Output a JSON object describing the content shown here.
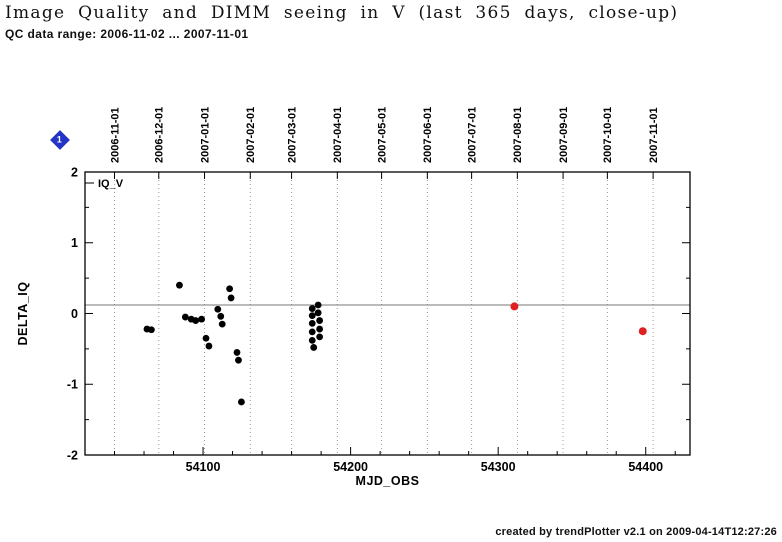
{
  "header": {
    "qc_range": "QC data range: 2006-11-02 ... 2007-11-01"
  },
  "marker_badge": {
    "label": "1",
    "color": "#2435c5"
  },
  "footer": {
    "credit": "created by trendPlotter v2.1 on 2009-04-14T12:27:26"
  },
  "chart_data": {
    "type": "scatter",
    "title": "Image Quality and DIMM seeing in V (last 365 days, close-up)",
    "xlabel": "MJD_OBS",
    "ylabel": "DELTA_IQ",
    "legend_label": "IQ_V",
    "xlim": [
      54020,
      54430
    ],
    "ylim": [
      -2,
      2
    ],
    "xticks": [
      54100,
      54200,
      54300,
      54400
    ],
    "yticks": [
      -2,
      -1,
      0,
      1,
      2
    ],
    "x_minor_step": 20,
    "y_minor_step": 0.5,
    "grid": "dotted-vertical-at-month-starts",
    "legend_position": "top-left-inside",
    "reference_line_y": 0.12,
    "top_axis_ticks": [
      {
        "label": "2006-11-01",
        "mjd": 54040
      },
      {
        "label": "2006-12-01",
        "mjd": 54070
      },
      {
        "label": "2007-01-01",
        "mjd": 54101
      },
      {
        "label": "2007-02-01",
        "mjd": 54132
      },
      {
        "label": "2007-03-01",
        "mjd": 54160
      },
      {
        "label": "2007-04-01",
        "mjd": 54191
      },
      {
        "label": "2007-05-01",
        "mjd": 54221
      },
      {
        "label": "2007-06-01",
        "mjd": 54252
      },
      {
        "label": "2007-07-01",
        "mjd": 54282
      },
      {
        "label": "2007-08-01",
        "mjd": 54313
      },
      {
        "label": "2007-09-01",
        "mjd": 54344
      },
      {
        "label": "2007-10-01",
        "mjd": 54374
      },
      {
        "label": "2007-11-01",
        "mjd": 54405
      }
    ],
    "series": [
      {
        "name": "iq-v-black",
        "color": "#000000",
        "marker_size": 3.4,
        "points": [
          [
            54062,
            -0.22
          ],
          [
            54065,
            -0.23
          ],
          [
            54084,
            0.4
          ],
          [
            54088,
            -0.05
          ],
          [
            54092,
            -0.08
          ],
          [
            54095,
            -0.1
          ],
          [
            54099,
            -0.08
          ],
          [
            54102,
            -0.35
          ],
          [
            54104,
            -0.46
          ],
          [
            54110,
            0.06
          ],
          [
            54112,
            -0.04
          ],
          [
            54113,
            -0.15
          ],
          [
            54118,
            0.35
          ],
          [
            54119,
            0.22
          ],
          [
            54123,
            -0.55
          ],
          [
            54124,
            -0.66
          ],
          [
            54126,
            -1.25
          ],
          [
            54174,
            0.07
          ],
          [
            54174,
            -0.03
          ],
          [
            54174,
            -0.14
          ],
          [
            54174,
            -0.26
          ],
          [
            54174,
            -0.38
          ],
          [
            54175,
            -0.48
          ],
          [
            54178,
            0.12
          ],
          [
            54178,
            0.01
          ],
          [
            54179,
            -0.1
          ],
          [
            54179,
            -0.22
          ],
          [
            54179,
            -0.33
          ]
        ]
      },
      {
        "name": "iq-v-red",
        "color": "#e02020",
        "marker_size": 4,
        "points": [
          [
            54311,
            0.1
          ],
          [
            54398,
            -0.25
          ]
        ]
      }
    ]
  }
}
